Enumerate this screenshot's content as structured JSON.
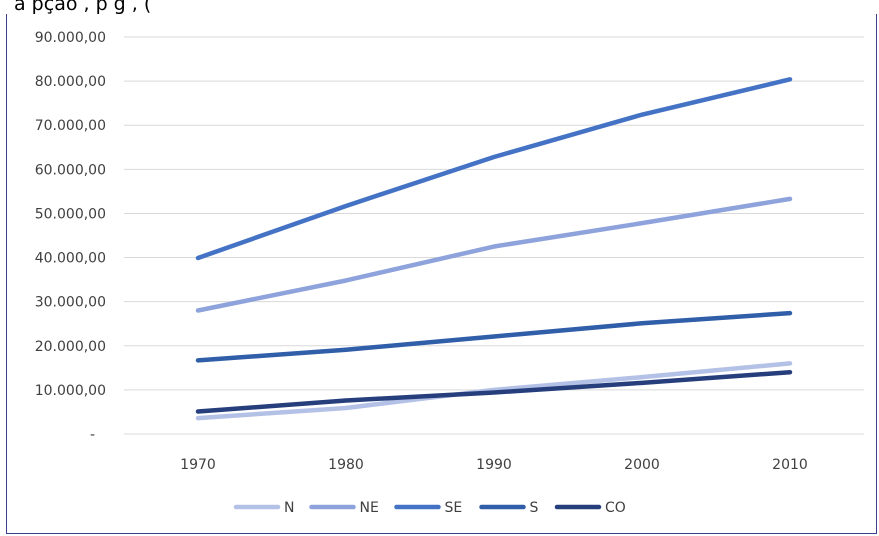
{
  "header_text": "a pção                    , p               g    ,                     (",
  "chart_data": {
    "type": "line",
    "categories": [
      "1970",
      "1980",
      "1990",
      "2000",
      "2010"
    ],
    "ylim": [
      0,
      90000
    ],
    "y_ticks": [
      {
        "value": 0,
        "label": "-"
      },
      {
        "value": 10000,
        "label": "10.000,00"
      },
      {
        "value": 20000,
        "label": "20.000,00"
      },
      {
        "value": 30000,
        "label": "30.000,00"
      },
      {
        "value": 40000,
        "label": "40.000,00"
      },
      {
        "value": 50000,
        "label": "50.000,00"
      },
      {
        "value": 60000,
        "label": "60.000,00"
      },
      {
        "value": 70000,
        "label": "70.000,00"
      },
      {
        "value": 80000,
        "label": "80.000,00"
      },
      {
        "value": 90000,
        "label": "90.000,00"
      }
    ],
    "grid": true,
    "legend_position": "bottom",
    "series": [
      {
        "name": "N",
        "color": "#b4c1e6",
        "values": [
          3600,
          5900,
          10000,
          12900,
          16000
        ]
      },
      {
        "name": "NE",
        "color": "#8ea3dc",
        "values": [
          28000,
          34800,
          42500,
          47800,
          53300
        ]
      },
      {
        "name": "SE",
        "color": "#4472c4",
        "values": [
          39900,
          51700,
          62800,
          72400,
          80400
        ]
      },
      {
        "name": "S",
        "color": "#305ea8",
        "values": [
          16700,
          19100,
          22100,
          25100,
          27400
        ]
      },
      {
        "name": "CO",
        "color": "#263f7c",
        "values": [
          5100,
          7600,
          9400,
          11600,
          14000
        ]
      }
    ]
  }
}
